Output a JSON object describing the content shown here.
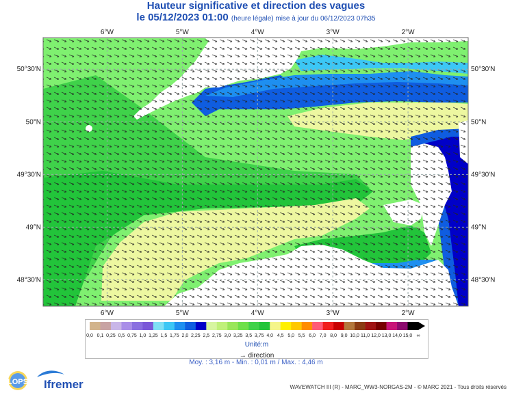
{
  "header": {
    "title": "Hauteur significative et direction des vagues",
    "date_line": "le 05/12/2023 01:00",
    "update_note": "(heure légale) mise à jour du 06/12/2023 07h35"
  },
  "map": {
    "lon_labels": [
      "6°W",
      "5°W",
      "4°W",
      "3°W",
      "2°W"
    ],
    "lat_labels": [
      "50°30'N",
      "50°N",
      "49°30'N",
      "49°N",
      "48°30'N"
    ],
    "lon_values": [
      -6,
      -5,
      -4,
      -3,
      -2
    ],
    "lat_values": [
      50.5,
      50.0,
      49.5,
      49.0,
      48.5
    ],
    "extent": {
      "lon_min": -6.85,
      "lon_max": -1.2,
      "lat_min": 48.25,
      "lat_max": 50.8
    },
    "wave_direction": "east-southeast",
    "land_color": "#ffffff"
  },
  "legend": {
    "bins": [
      "0,0",
      "0,1",
      "0,25",
      "0,5",
      "0,75",
      "1,0",
      "1,25",
      "1,5",
      "1,75",
      "2,0",
      "2,25",
      "2,5",
      "2,75",
      "3,0",
      "3,25",
      "3,5",
      "3,75",
      "4,0",
      "4,5",
      "5,0",
      "5,5",
      "6,0",
      "7,0",
      "8,0",
      "9,0",
      "10,0",
      "11,0",
      "12,0",
      "13,0",
      "14,0",
      "15,0",
      "∞"
    ],
    "colors": [
      "#d2b48c",
      "#c8a3a3",
      "#c9b6e8",
      "#a98ee8",
      "#8a6fe0",
      "#7a58d8",
      "#7fe0f5",
      "#3cc7f5",
      "#1e8ff0",
      "#0f5de0",
      "#0000c8",
      "#d7f5a0",
      "#c0f07a",
      "#9ae65a",
      "#6ee04a",
      "#3fd24a",
      "#22c43a",
      "#f5f58a",
      "#fff000",
      "#ffc800",
      "#ff8c00",
      "#ff5a78",
      "#f01e1e",
      "#c80000",
      "#b4783c",
      "#8c3c14",
      "#a01414",
      "#780000",
      "#c81478",
      "#8c0a6e",
      "#000000"
    ],
    "unit_label": "Unité:m",
    "direction_label": "direction",
    "arrow_glyph": "→"
  },
  "stats": {
    "text": "Moy. : 3,16 m   -   Min. : 0,01 m / Max. : 4,46 m"
  },
  "footer": {
    "credit": "WAVEWATCH III (R) - MARC_WW3-NORGAS-2M - © MARC 2021 - Tous droits réservés",
    "logo_lops": "LOPS",
    "logo_ifremer": "Ifremer"
  }
}
